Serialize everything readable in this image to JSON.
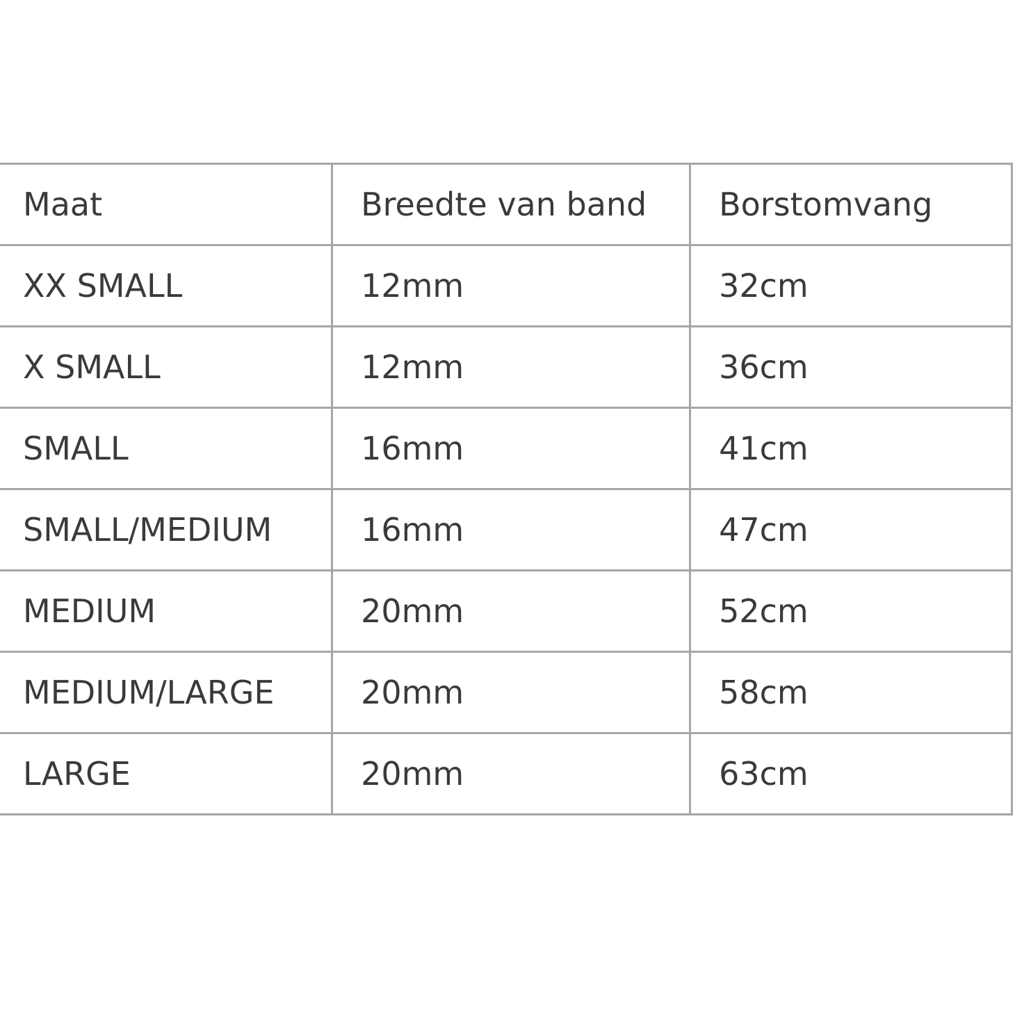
{
  "table": {
    "headers": [
      "Maat",
      "Breedte van band",
      "Borstomvang"
    ],
    "rows": [
      [
        "XX SMALL",
        "12mm",
        "32cm"
      ],
      [
        "X SMALL",
        "12mm",
        "36cm"
      ],
      [
        "SMALL",
        "16mm",
        "41cm"
      ],
      [
        "SMALL/MEDIUM",
        "16mm",
        "47cm"
      ],
      [
        "MEDIUM",
        "20mm",
        "52cm"
      ],
      [
        "MEDIUM/LARGE",
        "20mm",
        "58cm"
      ],
      [
        "LARGE",
        "20mm",
        "63cm"
      ]
    ]
  },
  "colors": {
    "text": "#3a3a3a",
    "border": "#a6a6a6"
  }
}
